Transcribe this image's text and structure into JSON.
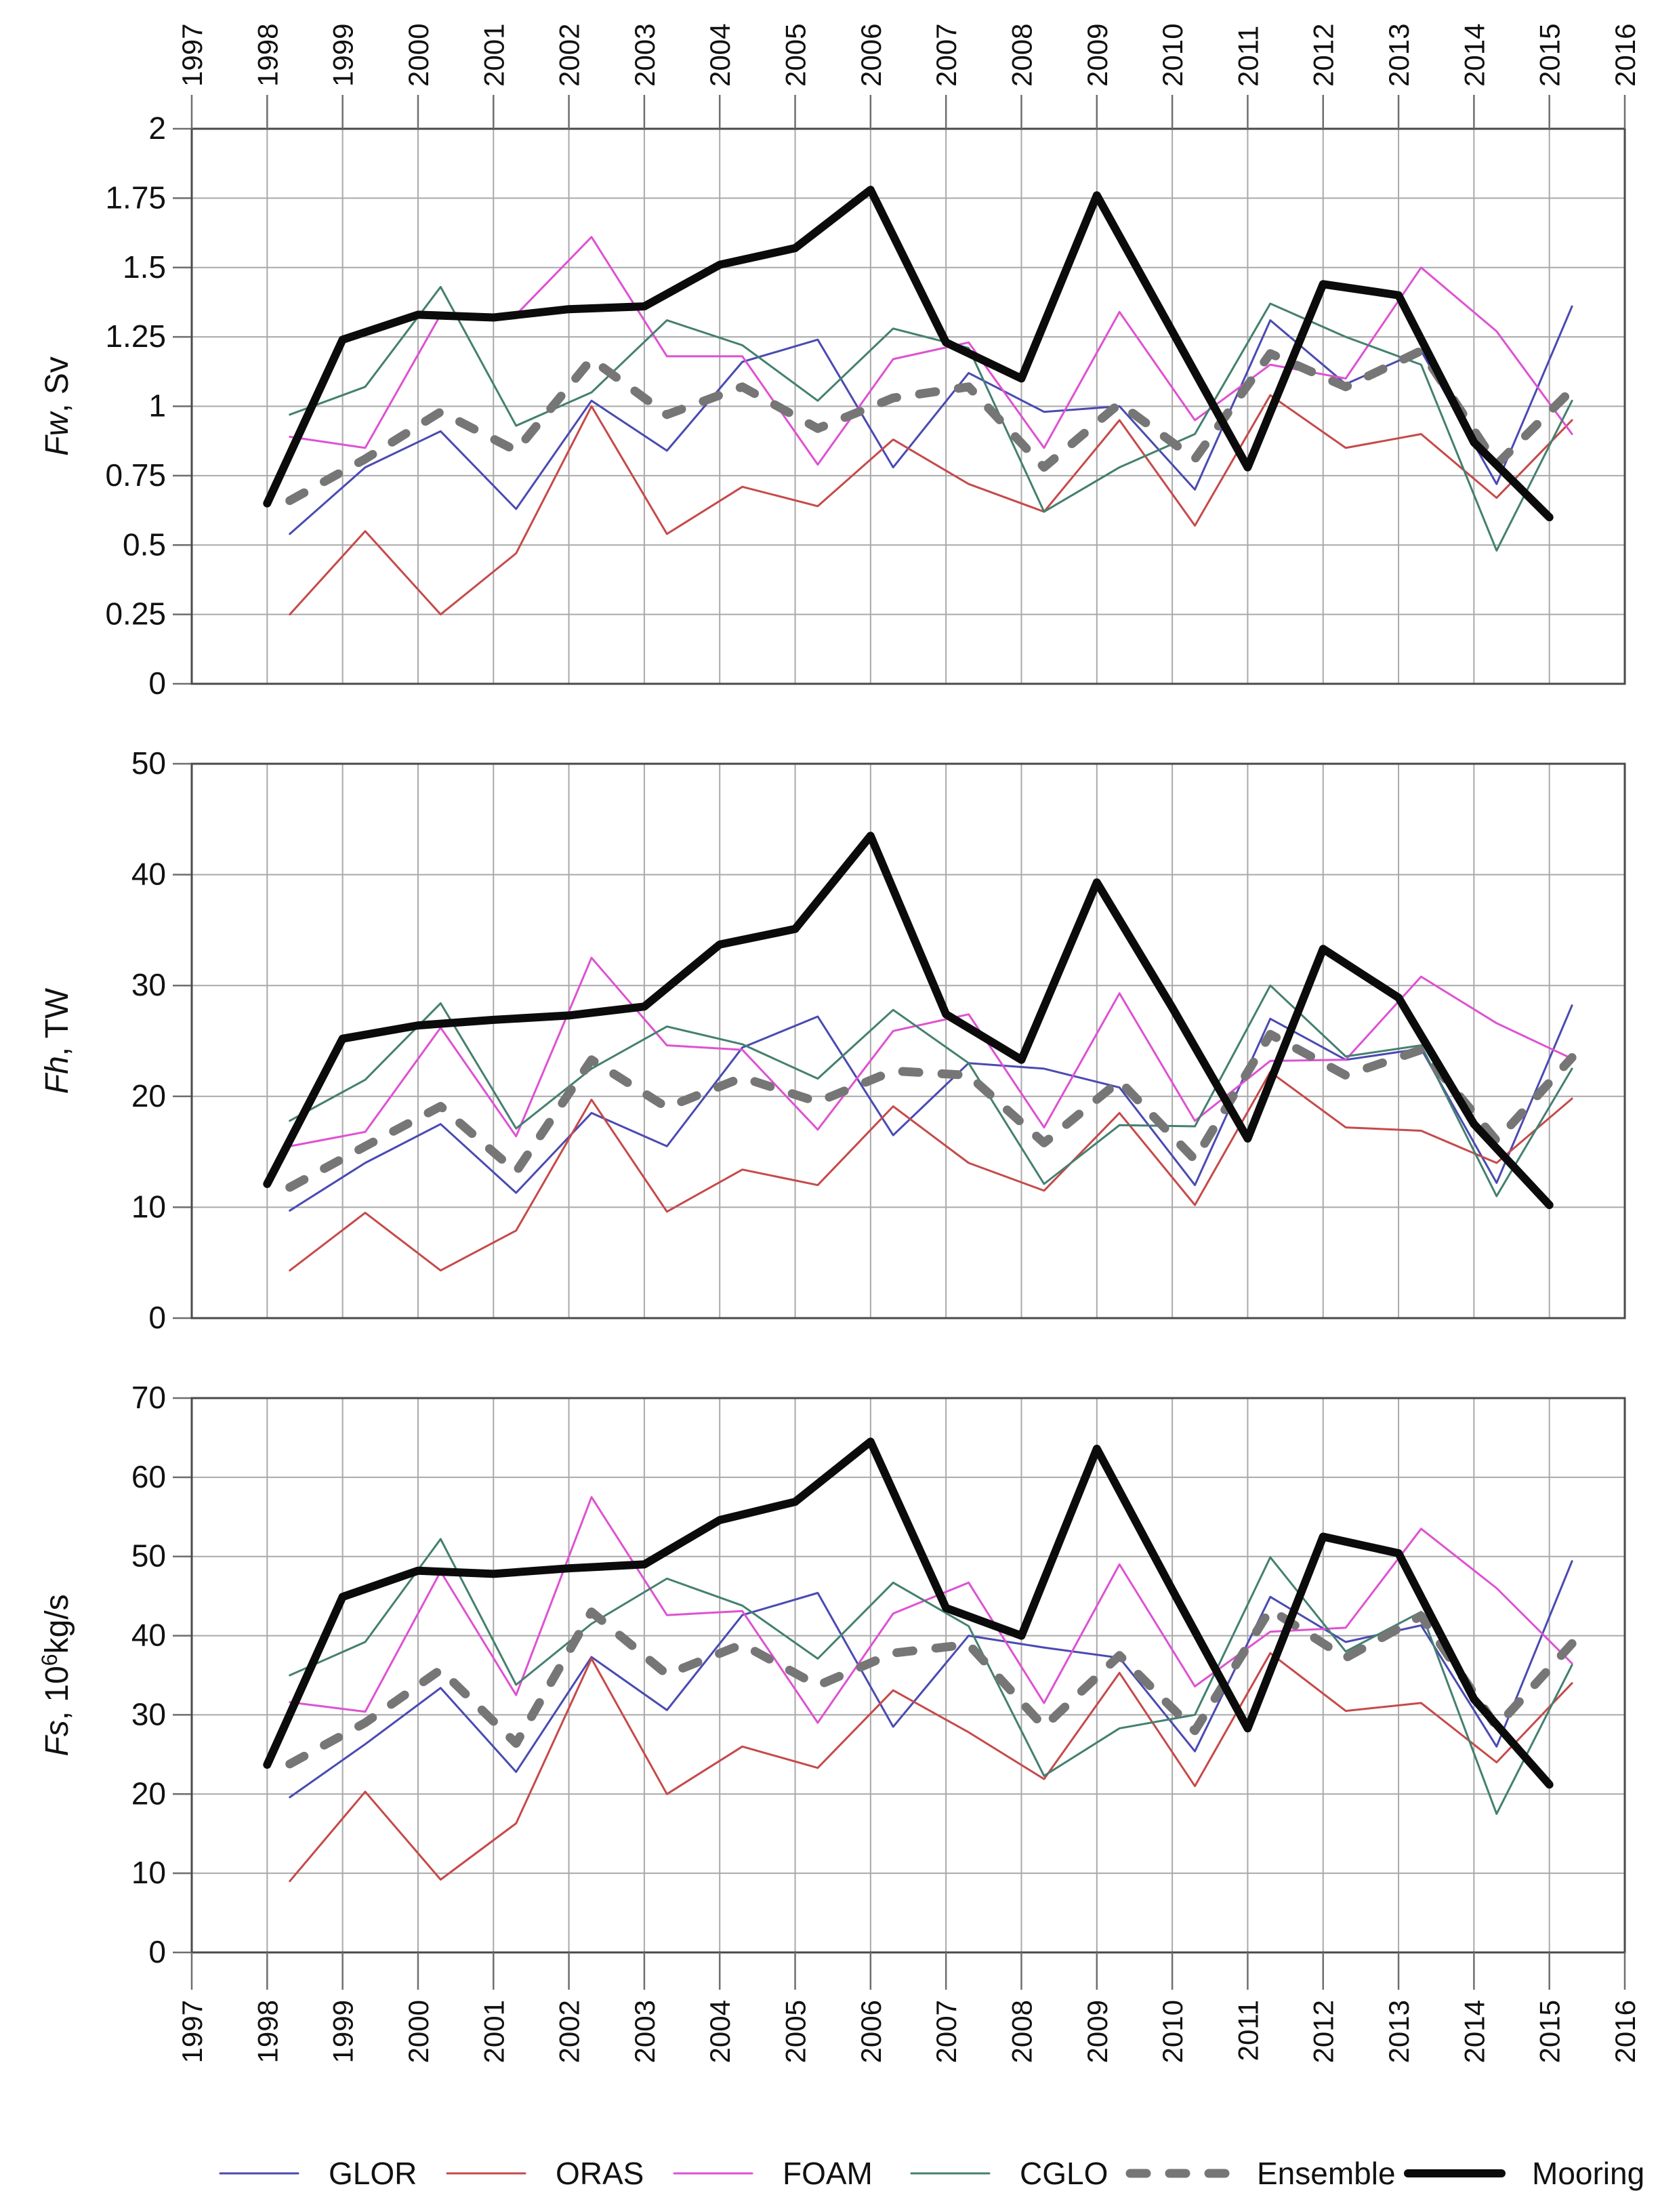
{
  "figure": {
    "background": "#ffffff"
  },
  "colors": {
    "grid": "#a9a9a9",
    "border": "#4a4a4a",
    "tick": "#6e6e6e",
    "text": "#111111",
    "glor": "#4a4ab2",
    "oras": "#c64a4a",
    "foam": "#de52d2",
    "cglo": "#44806f",
    "ensemble": "#767676",
    "mooring": "#0b0b0b"
  },
  "axes": {
    "x_tick_labels": [
      "1997",
      "1998",
      "1999",
      "2000",
      "2001",
      "2002",
      "2003",
      "2004",
      "2005",
      "2006",
      "2007",
      "2008",
      "2009",
      "2010",
      "2011",
      "2012",
      "2013",
      "2014",
      "2015",
      "2016"
    ],
    "xlim": [
      1997,
      2016
    ]
  },
  "series_styles": {
    "GLOR": {
      "color_key": "glor",
      "width": 3,
      "dash": "",
      "offset": 0.3
    },
    "ORAS": {
      "color_key": "oras",
      "width": 3,
      "dash": "",
      "offset": 0.3
    },
    "FOAM": {
      "color_key": "foam",
      "width": 3,
      "dash": "",
      "offset": 0.3
    },
    "CGLO": {
      "color_key": "cglo",
      "width": 3,
      "dash": "",
      "offset": 0.3
    },
    "Ensemble": {
      "color_key": "ensemble",
      "width": 13,
      "dash": "24 34",
      "offset": 0.3
    },
    "Mooring": {
      "color_key": "mooring",
      "width": 12,
      "dash": "",
      "offset": 0.0
    }
  },
  "chart_data": [
    {
      "type": "line",
      "ylabel_italic": "Fw",
      "ylabel_rest": ", Sv",
      "ylabel_sup": "",
      "ylabel_rest2": "",
      "ylim": [
        0,
        2
      ],
      "ytick_labels": [
        "2",
        "1.75",
        "1.5",
        "1.25",
        "1",
        "0.75",
        "0.5",
        "0.25",
        "0"
      ],
      "x": [
        1998,
        1999,
        2000,
        2001,
        2002,
        2003,
        2004,
        2005,
        2006,
        2007,
        2008,
        2009,
        2010,
        2011,
        2012,
        2013,
        2014,
        2015
      ],
      "grid": true,
      "series": [
        {
          "name": "GLOR",
          "values": [
            0.54,
            0.78,
            0.91,
            0.63,
            1.02,
            0.84,
            1.16,
            1.24,
            0.78,
            1.12,
            0.98,
            1.0,
            0.7,
            1.31,
            1.08,
            1.2,
            0.72,
            1.36
          ]
        },
        {
          "name": "ORAS",
          "values": [
            0.25,
            0.55,
            0.25,
            0.47,
            1.0,
            0.54,
            0.71,
            0.64,
            0.88,
            0.72,
            0.62,
            0.95,
            0.57,
            1.04,
            0.85,
            0.9,
            0.67,
            0.95
          ]
        },
        {
          "name": "FOAM",
          "values": [
            0.89,
            0.85,
            1.33,
            1.33,
            1.61,
            1.18,
            1.18,
            0.79,
            1.17,
            1.23,
            0.85,
            1.34,
            0.95,
            1.15,
            1.1,
            1.5,
            1.27,
            0.9
          ]
        },
        {
          "name": "CGLO",
          "values": [
            0.97,
            1.07,
            1.43,
            0.93,
            1.05,
            1.31,
            1.22,
            1.02,
            1.28,
            1.21,
            0.62,
            0.78,
            0.9,
            1.37,
            1.25,
            1.15,
            0.48,
            1.02
          ]
        },
        {
          "name": "Ensemble",
          "values": [
            0.66,
            0.81,
            0.98,
            0.84,
            1.17,
            0.97,
            1.07,
            0.92,
            1.03,
            1.07,
            0.78,
            1.01,
            0.81,
            1.19,
            1.07,
            1.2,
            0.79,
            1.06
          ]
        },
        {
          "name": "Mooring",
          "values": [
            0.65,
            1.24,
            1.33,
            1.32,
            1.35,
            1.36,
            1.51,
            1.57,
            1.78,
            1.23,
            1.1,
            1.76,
            1.27,
            0.78,
            1.44,
            1.4,
            0.87,
            0.6
          ]
        }
      ]
    },
    {
      "type": "line",
      "ylabel_italic": "Fh",
      "ylabel_rest": ", TW",
      "ylabel_sup": "",
      "ylabel_rest2": "",
      "ylim": [
        0,
        50
      ],
      "ytick_labels": [
        "50",
        "40",
        "30",
        "20",
        "10",
        "0"
      ],
      "x": [
        1998,
        1999,
        2000,
        2001,
        2002,
        2003,
        2004,
        2005,
        2006,
        2007,
        2008,
        2009,
        2010,
        2011,
        2012,
        2013,
        2014,
        2015
      ],
      "grid": true,
      "series": [
        {
          "name": "GLOR",
          "values": [
            9.7,
            14.0,
            17.5,
            11.3,
            18.5,
            15.5,
            24.4,
            27.2,
            16.5,
            23.0,
            22.5,
            20.8,
            12.0,
            27.0,
            23.3,
            24.3,
            12.2,
            28.2
          ]
        },
        {
          "name": "ORAS",
          "values": [
            4.3,
            9.5,
            4.3,
            7.9,
            19.7,
            9.6,
            13.4,
            12.0,
            19.1,
            14.0,
            11.5,
            18.5,
            10.2,
            22.2,
            17.2,
            16.9,
            14.0,
            19.8
          ]
        },
        {
          "name": "FOAM",
          "values": [
            15.5,
            16.8,
            26.2,
            16.4,
            32.5,
            24.6,
            24.2,
            17.0,
            25.9,
            27.4,
            17.2,
            29.3,
            17.8,
            23.2,
            23.3,
            30.8,
            26.6,
            23.4
          ]
        },
        {
          "name": "CGLO",
          "values": [
            17.8,
            21.5,
            28.4,
            17.1,
            22.5,
            26.3,
            24.7,
            21.6,
            27.8,
            23.0,
            12.1,
            17.4,
            17.3,
            30.0,
            23.6,
            24.6,
            11.0,
            22.5
          ]
        },
        {
          "name": "Ensemble",
          "values": [
            11.8,
            15.5,
            19.1,
            13.2,
            23.3,
            19.0,
            21.7,
            19.5,
            22.3,
            21.9,
            15.8,
            21.4,
            14.3,
            25.6,
            21.9,
            24.2,
            16.0,
            23.5
          ]
        },
        {
          "name": "Mooring",
          "values": [
            12.1,
            25.2,
            26.4,
            26.9,
            27.3,
            28.1,
            33.7,
            35.1,
            43.5,
            27.4,
            23.3,
            39.3,
            28.0,
            16.2,
            33.3,
            28.9,
            17.5,
            10.2
          ]
        }
      ]
    },
    {
      "type": "line",
      "ylabel_italic": "Fs",
      "ylabel_rest": ", 10",
      "ylabel_sup": "6",
      "ylabel_rest2": "kg/s",
      "ylim": [
        0,
        70
      ],
      "ytick_labels": [
        "70",
        "60",
        "50",
        "40",
        "30",
        "20",
        "10",
        "0"
      ],
      "x": [
        1998,
        1999,
        2000,
        2001,
        2002,
        2003,
        2004,
        2005,
        2006,
        2007,
        2008,
        2009,
        2010,
        2011,
        2012,
        2013,
        2014,
        2015
      ],
      "grid": true,
      "series": [
        {
          "name": "GLOR",
          "values": [
            19.6,
            26.3,
            33.4,
            22.8,
            37.3,
            30.6,
            42.6,
            45.4,
            28.5,
            40.0,
            38.5,
            37.2,
            25.4,
            44.9,
            39.2,
            41.3,
            26.0,
            49.4
          ]
        },
        {
          "name": "ORAS",
          "values": [
            9.0,
            20.3,
            9.2,
            16.3,
            37.1,
            20.0,
            26.0,
            23.3,
            33.1,
            27.8,
            21.9,
            35.3,
            21.0,
            37.8,
            30.5,
            31.5,
            24.0,
            34.0
          ]
        },
        {
          "name": "FOAM",
          "values": [
            31.6,
            30.4,
            48.1,
            32.5,
            57.5,
            42.6,
            43.1,
            29.0,
            42.8,
            46.7,
            31.5,
            49.0,
            33.6,
            40.5,
            41.0,
            53.5,
            46.0,
            36.5
          ]
        },
        {
          "name": "CGLO",
          "values": [
            35.0,
            39.2,
            52.2,
            33.8,
            41.5,
            47.2,
            43.8,
            37.1,
            46.7,
            41.2,
            22.3,
            28.3,
            30.0,
            49.9,
            38.0,
            43.0,
            17.5,
            36.3
          ]
        },
        {
          "name": "Ensemble",
          "values": [
            23.8,
            29.0,
            35.7,
            26.4,
            43.0,
            35.1,
            38.9,
            33.7,
            37.8,
            38.9,
            28.5,
            37.5,
            28.0,
            43.3,
            37.2,
            42.5,
            28.5,
            39.0
          ]
        },
        {
          "name": "Mooring",
          "values": [
            23.7,
            44.9,
            48.2,
            47.8,
            48.5,
            49.0,
            54.6,
            56.9,
            64.5,
            43.5,
            40.0,
            63.6,
            45.8,
            28.3,
            52.5,
            50.4,
            32.0,
            21.2
          ]
        }
      ]
    }
  ],
  "legend": {
    "y": 3207,
    "items": [
      {
        "label": "GLOR",
        "x": 325,
        "w": 115
      },
      {
        "label": "ORAS",
        "x": 660,
        "w": 115
      },
      {
        "label": "FOAM",
        "x": 995,
        "w": 115
      },
      {
        "label": "CGLO",
        "x": 1345,
        "w": 115
      },
      {
        "label": "Ensemble",
        "x": 1668,
        "w": 142
      },
      {
        "label": "Mooring",
        "x": 2078,
        "w": 138
      }
    ]
  }
}
